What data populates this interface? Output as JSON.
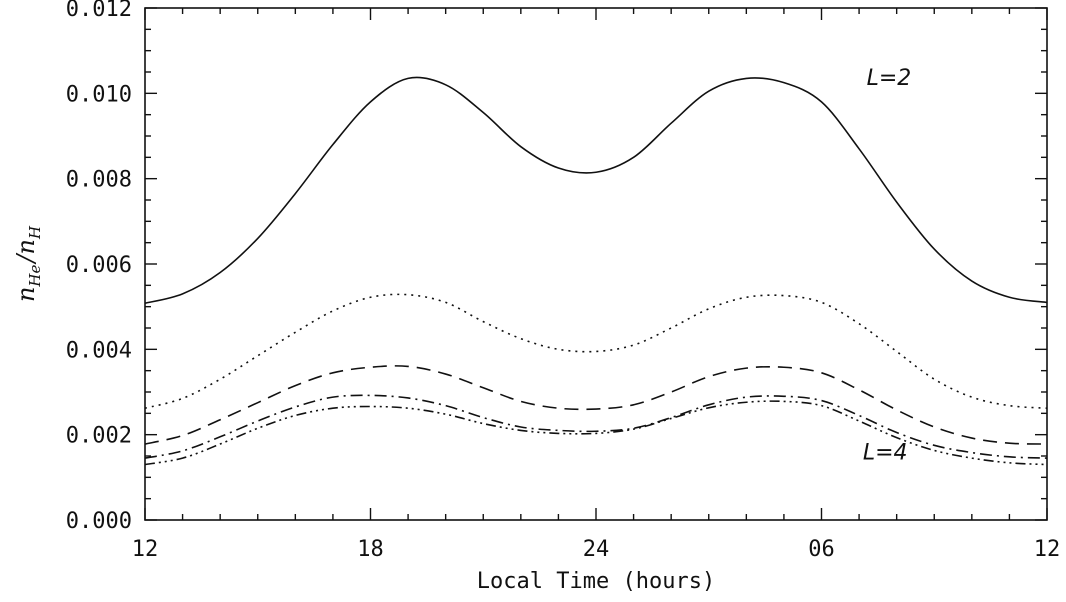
{
  "chart_data": {
    "type": "line",
    "xlabel": "Local Time (hours)",
    "ylabel": {
      "base": "n",
      "sub_num": "He",
      "sub_den": "H"
    },
    "x_ticks": [
      "12",
      "18",
      "24",
      "06",
      "12"
    ],
    "y_ticks": [
      "0.000",
      "0.002",
      "0.004",
      "0.006",
      "0.008",
      "0.010",
      "0.012"
    ],
    "xlim": [
      12,
      36
    ],
    "ylim": [
      0,
      0.012
    ],
    "x": [
      12,
      13,
      14,
      15,
      16,
      17,
      18,
      19,
      20,
      21,
      22,
      23,
      24,
      25,
      26,
      27,
      28,
      29,
      30,
      31,
      32,
      33,
      34,
      35,
      36
    ],
    "series": [
      {
        "dash": "solid",
        "values": [
          0.00508,
          0.0053,
          0.0058,
          0.0066,
          0.00765,
          0.0088,
          0.0098,
          0.01035,
          0.0102,
          0.00955,
          0.00875,
          0.00825,
          0.00815,
          0.0085,
          0.0093,
          0.01005,
          0.01035,
          0.01025,
          0.0098,
          0.0087,
          0.00745,
          0.00635,
          0.0056,
          0.00522,
          0.0051
        ]
      },
      {
        "dash": "dotted",
        "values": [
          0.00262,
          0.00285,
          0.0033,
          0.00385,
          0.0044,
          0.0049,
          0.00522,
          0.00528,
          0.0051,
          0.00465,
          0.00425,
          0.004,
          0.00395,
          0.0041,
          0.0045,
          0.00495,
          0.00522,
          0.00526,
          0.0051,
          0.0046,
          0.00395,
          0.0033,
          0.00288,
          0.00268,
          0.00262
        ]
      },
      {
        "dash": "dashed",
        "values": [
          0.00178,
          0.00198,
          0.00235,
          0.00275,
          0.00315,
          0.00345,
          0.00358,
          0.0036,
          0.00342,
          0.0031,
          0.00278,
          0.00262,
          0.0026,
          0.0027,
          0.003,
          0.00336,
          0.00356,
          0.00358,
          0.00345,
          0.00305,
          0.00258,
          0.00218,
          0.00192,
          0.0018,
          0.00178
        ]
      },
      {
        "dash": "dashdot",
        "values": [
          0.00145,
          0.00162,
          0.00195,
          0.00232,
          0.00265,
          0.00288,
          0.00292,
          0.00286,
          0.00268,
          0.0024,
          0.00218,
          0.0021,
          0.00208,
          0.00215,
          0.0024,
          0.0027,
          0.00288,
          0.0029,
          0.0028,
          0.00245,
          0.00205,
          0.00175,
          0.00158,
          0.00148,
          0.00145
        ]
      },
      {
        "dash": "dash3dot",
        "values": [
          0.0013,
          0.00145,
          0.00178,
          0.00215,
          0.00245,
          0.00262,
          0.00266,
          0.00262,
          0.00248,
          0.00226,
          0.0021,
          0.00203,
          0.00203,
          0.00213,
          0.00238,
          0.00263,
          0.00276,
          0.00278,
          0.00268,
          0.00232,
          0.00193,
          0.00163,
          0.00145,
          0.00134,
          0.0013
        ]
      }
    ],
    "annotations": [
      {
        "text": "L=2",
        "x": 31.2,
        "y": 0.0102
      },
      {
        "text": "L=4",
        "x": 31.1,
        "y": 0.00142
      }
    ],
    "grid": false,
    "legend": "none"
  }
}
